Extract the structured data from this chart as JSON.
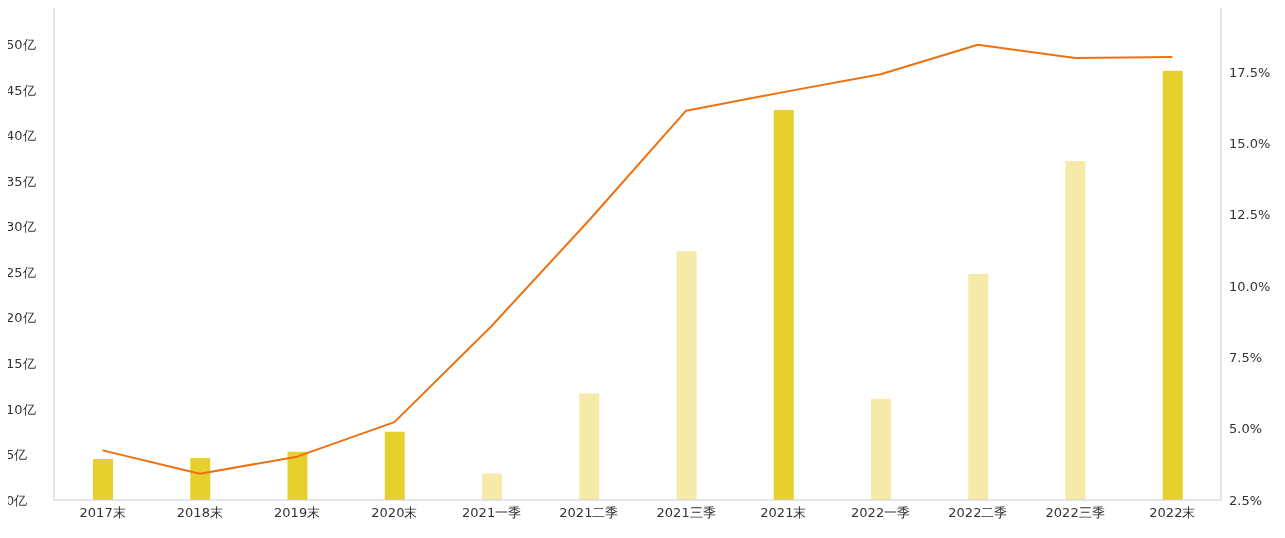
{
  "chart_data": {
    "type": "bar",
    "categories": [
      "2017末",
      "2018末",
      "2019末",
      "2020末",
      "2021一季",
      "2021二季",
      "2021三季",
      "2021末",
      "2022一季",
      "2022二季",
      "2022三季",
      "2022末"
    ],
    "series": [
      {
        "colors": [
          "#e6d02c",
          "#e6d02c",
          "#e6d02c",
          "#e6d02c",
          "#f5eaa8",
          "#f5eaa8",
          "#f5eaa8",
          "#e6d02c",
          "#f5eaa8",
          "#f5eaa8",
          "#f5eaa8",
          "#e6d02c"
        ],
        "values": [
          4.5,
          4.6,
          5.3,
          7.5,
          2.9,
          11.7,
          27.3,
          42.8,
          11.1,
          24.8,
          37.2,
          47.1
        ]
      },
      {
        "type": "line",
        "color": "#f07010",
        "axis": "y2",
        "values": [
          4.24,
          3.42,
          4.02,
          5.23,
          8.6,
          12.3,
          16.15,
          16.8,
          17.43,
          18.46,
          18.0,
          18.03
        ]
      }
    ],
    "ylim": [
      0,
      54
    ],
    "yticks": [
      {
        "value": 0,
        "label": "0亿"
      },
      {
        "value": 5,
        "label": "5亿"
      },
      {
        "value": 10,
        "label": "10亿"
      },
      {
        "value": 15,
        "label": "15亿"
      },
      {
        "value": 20,
        "label": "20亿"
      },
      {
        "value": 25,
        "label": "25亿"
      },
      {
        "value": 30,
        "label": "30亿"
      },
      {
        "value": 35,
        "label": "35亿"
      },
      {
        "value": 40,
        "label": "40亿"
      },
      {
        "value": 45,
        "label": "45亿"
      },
      {
        "value": 50,
        "label": "50亿"
      }
    ],
    "y2lim": [
      2.5,
      19.75
    ],
    "y2ticks": [
      {
        "value": 2.5,
        "label": "2.5%"
      },
      {
        "value": 5,
        "label": "5.0%"
      },
      {
        "value": 7.5,
        "label": "7.5%"
      },
      {
        "value": 10,
        "label": "10.0%"
      },
      {
        "value": 12.5,
        "label": "12.5%"
      },
      {
        "value": 15,
        "label": "15.0%"
      },
      {
        "value": 17.5,
        "label": "17.5%"
      }
    ],
    "marker": "none"
  }
}
